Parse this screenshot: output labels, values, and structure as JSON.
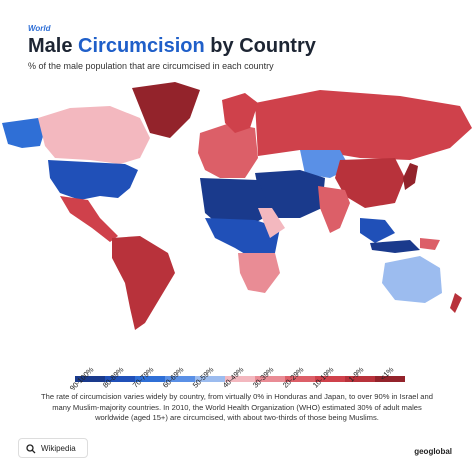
{
  "header": {
    "kicker": "World",
    "title_parts": [
      "Male ",
      "Circumcision",
      " by Country"
    ],
    "subtitle": "% of the male population that are circumcised in each country"
  },
  "legend": {
    "items": [
      {
        "label": "90-100%",
        "color": "#1a3a8c"
      },
      {
        "label": "80-89%",
        "color": "#2050b8"
      },
      {
        "label": "70-79%",
        "color": "#2f6fd6"
      },
      {
        "label": "60-69%",
        "color": "#5a90e6"
      },
      {
        "label": "50-59%",
        "color": "#9cbcef"
      },
      {
        "label": "40-49%",
        "color": "#f3b8bf"
      },
      {
        "label": "30-39%",
        "color": "#e98c95"
      },
      {
        "label": "20-29%",
        "color": "#dc5f68"
      },
      {
        "label": "10-19%",
        "color": "#cf414b"
      },
      {
        "label": "1-9%",
        "color": "#b8323b"
      },
      {
        "label": "<1%",
        "color": "#93232b"
      }
    ]
  },
  "description": "The rate of circumcision varies widely by country, from virtually 0% in Honduras and Japan, to over 90% in Israel and many Muslim-majority countries. In 2010, the World Health Organization (WHO) estimated 30% of adult males worldwide (aged 15+) are circumcised, with about two-thirds of those being Muslims.",
  "footer": {
    "source": "Wikipedia",
    "brand": "geoglobal"
  }
}
